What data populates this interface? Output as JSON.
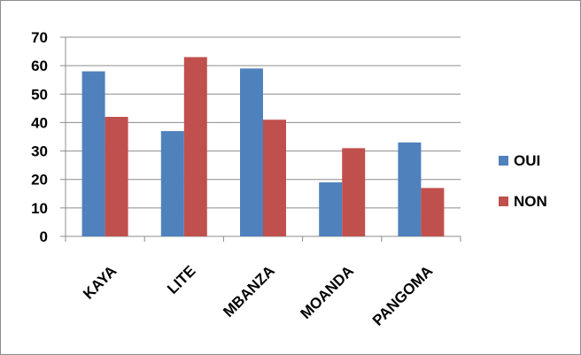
{
  "chart_data": {
    "type": "bar",
    "categories": [
      "KAYA",
      "LITE",
      "MBANZA",
      "MOANDA",
      "PANGOMA"
    ],
    "series": [
      {
        "name": "OUI",
        "values": [
          58,
          37,
          59,
          19,
          33
        ],
        "color": "#4f81bd"
      },
      {
        "name": "NON",
        "values": [
          42,
          63,
          41,
          31,
          17
        ],
        "color": "#c0504d"
      }
    ],
    "ylim": [
      0,
      70
    ],
    "yticks": [
      0,
      10,
      20,
      30,
      40,
      50,
      60,
      70
    ],
    "grid": true,
    "legend": "right",
    "title": "",
    "xlabel": "",
    "ylabel": ""
  }
}
